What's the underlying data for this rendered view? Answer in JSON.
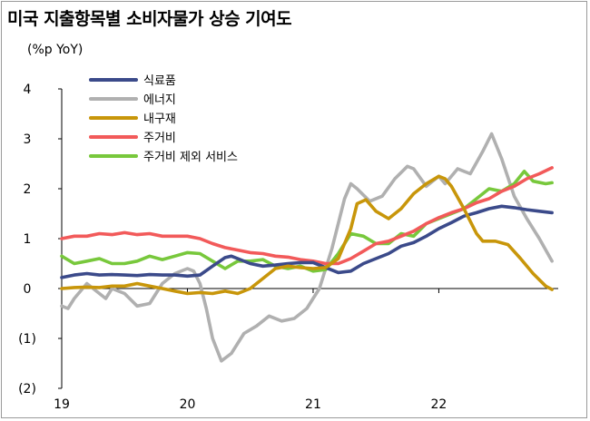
{
  "chart_data": {
    "type": "line",
    "title": "미국 지출항목별 소비자물가 상승 기여도",
    "ylabel": "(%p YoY)",
    "ylim": [
      -2,
      4
    ],
    "y_ticks": [
      "4",
      "3",
      "2",
      "1",
      "0",
      "(1)",
      "(2)"
    ],
    "y_tick_values": [
      4,
      3,
      2,
      1,
      0,
      -1,
      -2
    ],
    "x_ticks": [
      "19",
      "20",
      "21",
      "22"
    ],
    "x_tick_values": [
      2019.0,
      2020.0,
      2021.0,
      2022.0
    ],
    "xlim": [
      2019.0,
      2022.95
    ],
    "grid": false,
    "legend_position": "top-left",
    "series": [
      {
        "name": "식료품",
        "color": "#3b4a8a",
        "points": [
          [
            2019.0,
            0.22
          ],
          [
            2019.1,
            0.27
          ],
          [
            2019.2,
            0.3
          ],
          [
            2019.3,
            0.27
          ],
          [
            2019.4,
            0.28
          ],
          [
            2019.5,
            0.27
          ],
          [
            2019.6,
            0.26
          ],
          [
            2019.7,
            0.28
          ],
          [
            2019.8,
            0.27
          ],
          [
            2019.9,
            0.27
          ],
          [
            2020.0,
            0.25
          ],
          [
            2020.1,
            0.27
          ],
          [
            2020.2,
            0.45
          ],
          [
            2020.3,
            0.62
          ],
          [
            2020.35,
            0.65
          ],
          [
            2020.4,
            0.6
          ],
          [
            2020.5,
            0.5
          ],
          [
            2020.6,
            0.45
          ],
          [
            2020.7,
            0.47
          ],
          [
            2020.8,
            0.5
          ],
          [
            2020.9,
            0.52
          ],
          [
            2021.0,
            0.52
          ],
          [
            2021.1,
            0.42
          ],
          [
            2021.2,
            0.32
          ],
          [
            2021.3,
            0.35
          ],
          [
            2021.4,
            0.5
          ],
          [
            2021.5,
            0.6
          ],
          [
            2021.6,
            0.7
          ],
          [
            2021.7,
            0.85
          ],
          [
            2021.8,
            0.92
          ],
          [
            2021.9,
            1.05
          ],
          [
            2022.0,
            1.2
          ],
          [
            2022.1,
            1.32
          ],
          [
            2022.2,
            1.45
          ],
          [
            2022.3,
            1.52
          ],
          [
            2022.4,
            1.6
          ],
          [
            2022.5,
            1.65
          ],
          [
            2022.6,
            1.62
          ],
          [
            2022.7,
            1.58
          ],
          [
            2022.8,
            1.55
          ],
          [
            2022.9,
            1.52
          ]
        ]
      },
      {
        "name": "에너지",
        "color": "#b0b0b0",
        "points": [
          [
            2019.0,
            -0.35
          ],
          [
            2019.05,
            -0.4
          ],
          [
            2019.1,
            -0.2
          ],
          [
            2019.2,
            0.1
          ],
          [
            2019.3,
            -0.1
          ],
          [
            2019.35,
            -0.2
          ],
          [
            2019.4,
            0.0
          ],
          [
            2019.5,
            -0.1
          ],
          [
            2019.6,
            -0.35
          ],
          [
            2019.7,
            -0.3
          ],
          [
            2019.8,
            0.1
          ],
          [
            2019.9,
            0.3
          ],
          [
            2020.0,
            0.4
          ],
          [
            2020.05,
            0.35
          ],
          [
            2020.1,
            0.1
          ],
          [
            2020.15,
            -0.4
          ],
          [
            2020.2,
            -1.0
          ],
          [
            2020.27,
            -1.45
          ],
          [
            2020.35,
            -1.3
          ],
          [
            2020.45,
            -0.9
          ],
          [
            2020.55,
            -0.75
          ],
          [
            2020.65,
            -0.55
          ],
          [
            2020.75,
            -0.65
          ],
          [
            2020.85,
            -0.6
          ],
          [
            2020.95,
            -0.4
          ],
          [
            2021.05,
            0.0
          ],
          [
            2021.15,
            0.8
          ],
          [
            2021.25,
            1.8
          ],
          [
            2021.3,
            2.1
          ],
          [
            2021.35,
            2.0
          ],
          [
            2021.45,
            1.75
          ],
          [
            2021.55,
            1.85
          ],
          [
            2021.65,
            2.2
          ],
          [
            2021.75,
            2.45
          ],
          [
            2021.8,
            2.4
          ],
          [
            2021.9,
            2.05
          ],
          [
            2022.0,
            2.25
          ],
          [
            2022.05,
            2.1
          ],
          [
            2022.15,
            2.4
          ],
          [
            2022.25,
            2.3
          ],
          [
            2022.35,
            2.75
          ],
          [
            2022.42,
            3.1
          ],
          [
            2022.5,
            2.6
          ],
          [
            2022.6,
            1.85
          ],
          [
            2022.7,
            1.4
          ],
          [
            2022.8,
            1.0
          ],
          [
            2022.9,
            0.55
          ]
        ]
      },
      {
        "name": "내구재",
        "color": "#c8960a",
        "points": [
          [
            2019.0,
            0.0
          ],
          [
            2019.1,
            0.02
          ],
          [
            2019.2,
            0.03
          ],
          [
            2019.3,
            0.02
          ],
          [
            2019.4,
            0.05
          ],
          [
            2019.5,
            0.05
          ],
          [
            2019.6,
            0.1
          ],
          [
            2019.7,
            0.05
          ],
          [
            2019.8,
            0.0
          ],
          [
            2019.9,
            -0.05
          ],
          [
            2020.0,
            -0.1
          ],
          [
            2020.1,
            -0.08
          ],
          [
            2020.2,
            -0.1
          ],
          [
            2020.3,
            -0.05
          ],
          [
            2020.4,
            -0.1
          ],
          [
            2020.5,
            0.0
          ],
          [
            2020.6,
            0.2
          ],
          [
            2020.7,
            0.4
          ],
          [
            2020.8,
            0.45
          ],
          [
            2020.9,
            0.42
          ],
          [
            2021.0,
            0.4
          ],
          [
            2021.1,
            0.42
          ],
          [
            2021.2,
            0.6
          ],
          [
            2021.3,
            1.2
          ],
          [
            2021.35,
            1.7
          ],
          [
            2021.42,
            1.78
          ],
          [
            2021.5,
            1.55
          ],
          [
            2021.6,
            1.4
          ],
          [
            2021.7,
            1.6
          ],
          [
            2021.8,
            1.9
          ],
          [
            2021.9,
            2.1
          ],
          [
            2022.0,
            2.25
          ],
          [
            2022.05,
            2.2
          ],
          [
            2022.1,
            2.05
          ],
          [
            2022.2,
            1.6
          ],
          [
            2022.3,
            1.1
          ],
          [
            2022.35,
            0.95
          ],
          [
            2022.45,
            0.95
          ],
          [
            2022.55,
            0.88
          ],
          [
            2022.65,
            0.6
          ],
          [
            2022.75,
            0.3
          ],
          [
            2022.85,
            0.05
          ],
          [
            2022.9,
            -0.02
          ]
        ]
      },
      {
        "name": "주거비",
        "color": "#f25a5a",
        "points": [
          [
            2019.0,
            1.0
          ],
          [
            2019.1,
            1.05
          ],
          [
            2019.2,
            1.05
          ],
          [
            2019.3,
            1.1
          ],
          [
            2019.4,
            1.08
          ],
          [
            2019.5,
            1.12
          ],
          [
            2019.6,
            1.08
          ],
          [
            2019.7,
            1.1
          ],
          [
            2019.8,
            1.05
          ],
          [
            2019.9,
            1.05
          ],
          [
            2020.0,
            1.05
          ],
          [
            2020.1,
            1.0
          ],
          [
            2020.2,
            0.9
          ],
          [
            2020.3,
            0.82
          ],
          [
            2020.4,
            0.77
          ],
          [
            2020.5,
            0.72
          ],
          [
            2020.6,
            0.7
          ],
          [
            2020.7,
            0.65
          ],
          [
            2020.8,
            0.63
          ],
          [
            2020.9,
            0.58
          ],
          [
            2021.0,
            0.55
          ],
          [
            2021.1,
            0.5
          ],
          [
            2021.2,
            0.5
          ],
          [
            2021.3,
            0.6
          ],
          [
            2021.4,
            0.75
          ],
          [
            2021.5,
            0.9
          ],
          [
            2021.6,
            0.95
          ],
          [
            2021.7,
            1.05
          ],
          [
            2021.8,
            1.15
          ],
          [
            2021.9,
            1.3
          ],
          [
            2022.0,
            1.42
          ],
          [
            2022.1,
            1.52
          ],
          [
            2022.2,
            1.6
          ],
          [
            2022.3,
            1.72
          ],
          [
            2022.4,
            1.8
          ],
          [
            2022.5,
            1.95
          ],
          [
            2022.6,
            2.05
          ],
          [
            2022.7,
            2.2
          ],
          [
            2022.8,
            2.3
          ],
          [
            2022.9,
            2.42
          ]
        ]
      },
      {
        "name": "주거비 제외 서비스",
        "color": "#78c83c",
        "points": [
          [
            2019.0,
            0.65
          ],
          [
            2019.1,
            0.5
          ],
          [
            2019.2,
            0.55
          ],
          [
            2019.3,
            0.6
          ],
          [
            2019.4,
            0.5
          ],
          [
            2019.5,
            0.5
          ],
          [
            2019.6,
            0.55
          ],
          [
            2019.7,
            0.65
          ],
          [
            2019.8,
            0.58
          ],
          [
            2019.9,
            0.65
          ],
          [
            2020.0,
            0.72
          ],
          [
            2020.1,
            0.7
          ],
          [
            2020.2,
            0.55
          ],
          [
            2020.3,
            0.4
          ],
          [
            2020.4,
            0.55
          ],
          [
            2020.5,
            0.55
          ],
          [
            2020.6,
            0.58
          ],
          [
            2020.7,
            0.45
          ],
          [
            2020.8,
            0.4
          ],
          [
            2020.9,
            0.45
          ],
          [
            2021.0,
            0.35
          ],
          [
            2021.1,
            0.38
          ],
          [
            2021.2,
            0.7
          ],
          [
            2021.3,
            1.1
          ],
          [
            2021.4,
            1.05
          ],
          [
            2021.5,
            0.9
          ],
          [
            2021.6,
            0.9
          ],
          [
            2021.7,
            1.1
          ],
          [
            2021.8,
            1.05
          ],
          [
            2021.9,
            1.3
          ],
          [
            2022.0,
            1.4
          ],
          [
            2022.1,
            1.5
          ],
          [
            2022.2,
            1.6
          ],
          [
            2022.3,
            1.8
          ],
          [
            2022.4,
            2.0
          ],
          [
            2022.5,
            1.95
          ],
          [
            2022.6,
            2.1
          ],
          [
            2022.68,
            2.35
          ],
          [
            2022.75,
            2.15
          ],
          [
            2022.85,
            2.1
          ],
          [
            2022.9,
            2.12
          ]
        ]
      }
    ]
  }
}
